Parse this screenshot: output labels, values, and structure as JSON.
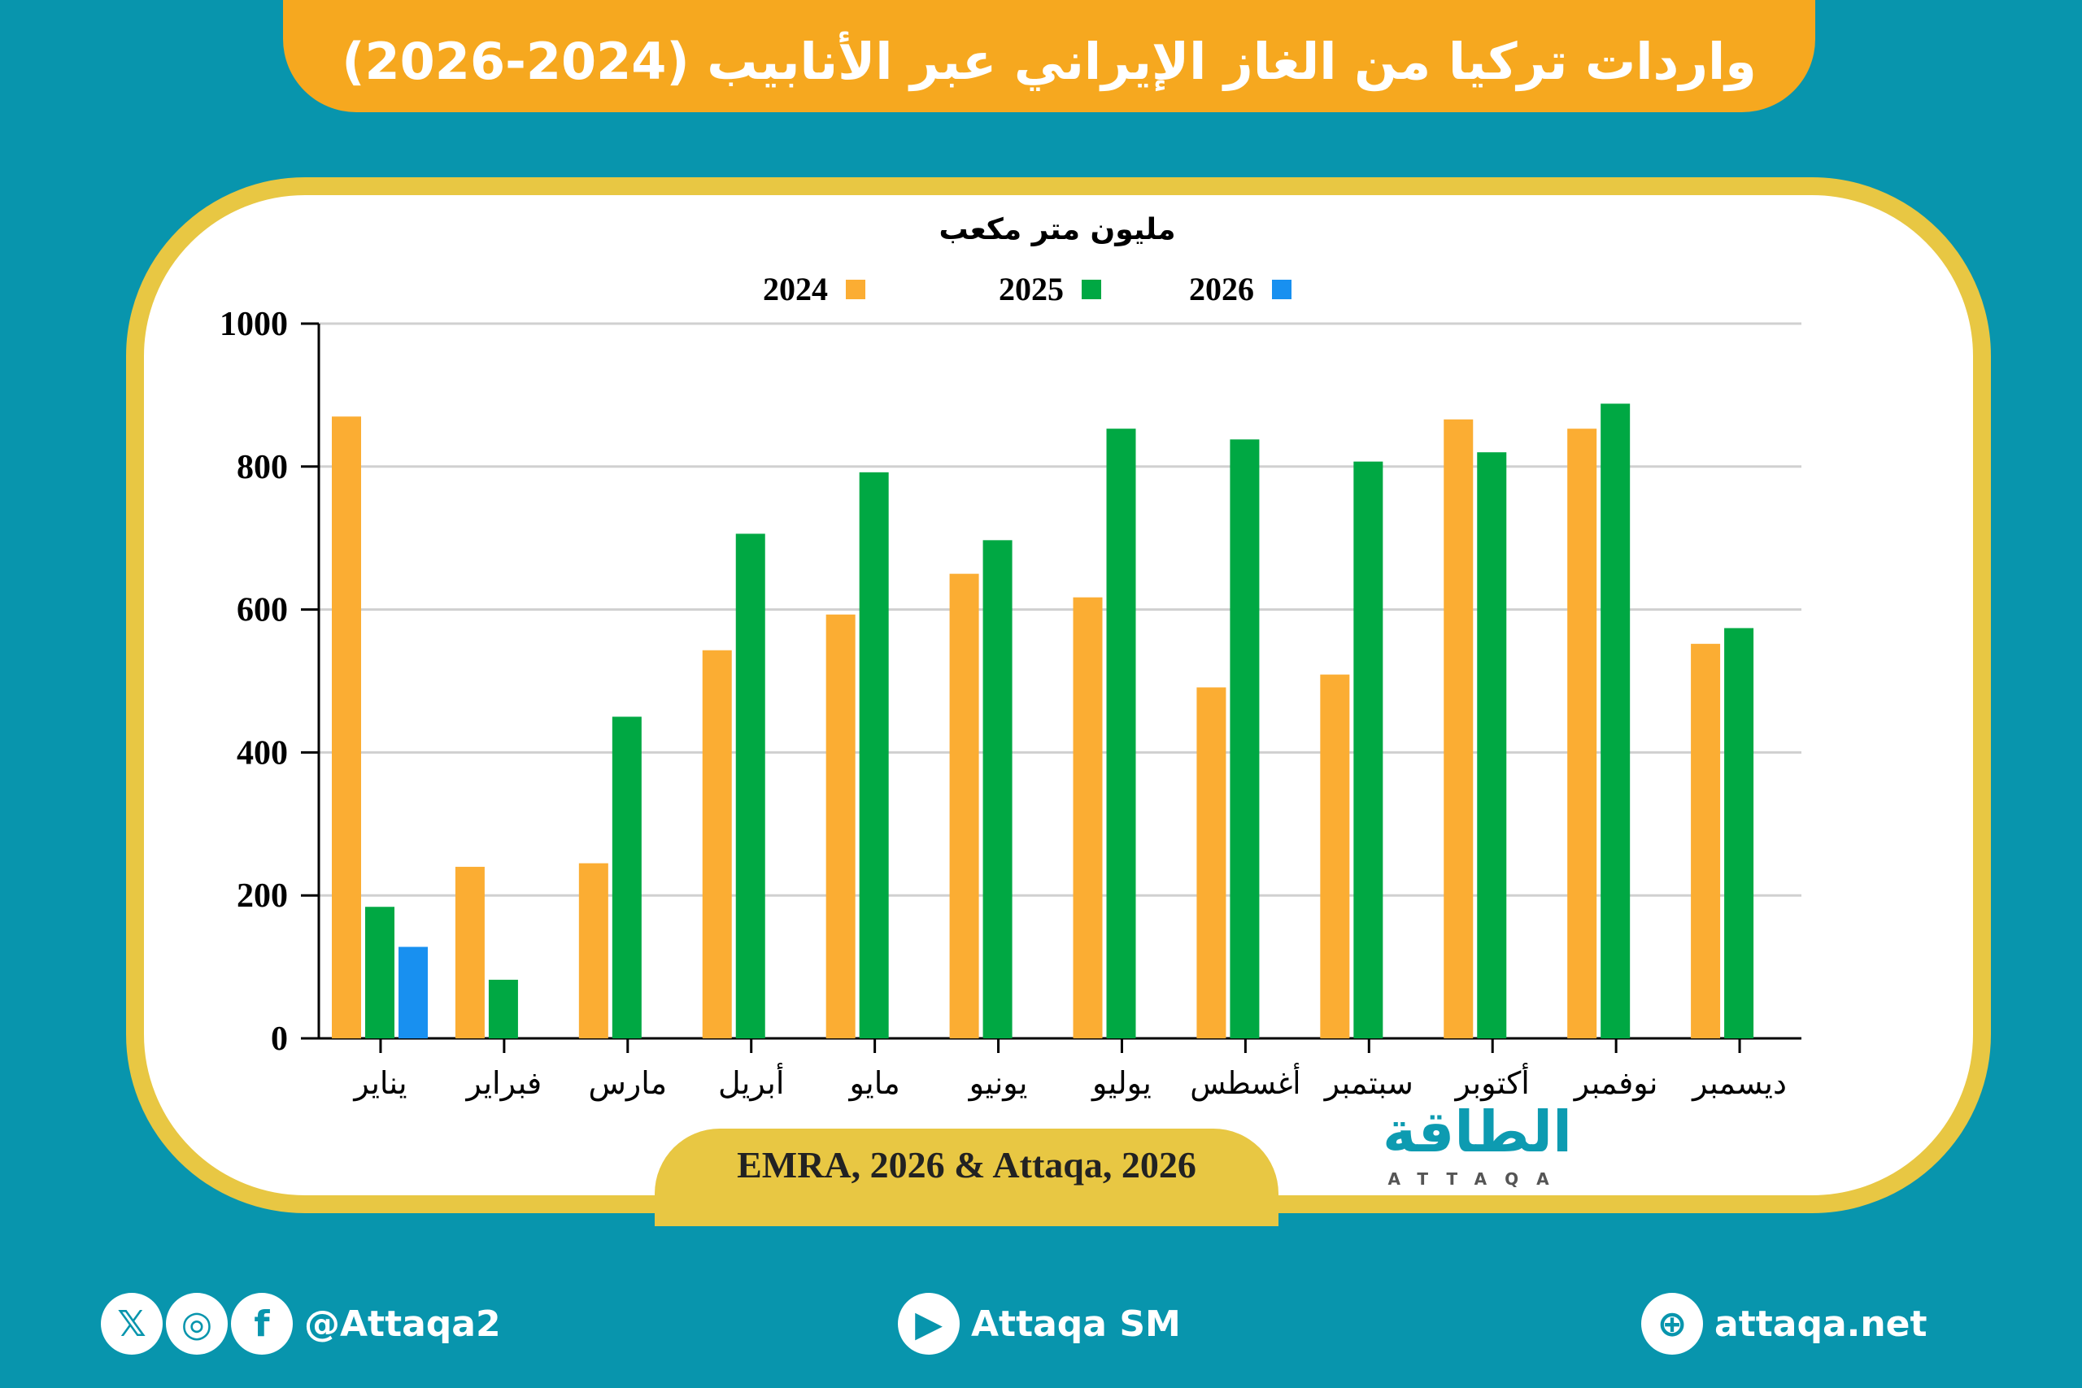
{
  "title": "واردات تركيا من الغاز الإيراني عبر الأنابيب (2024-2026)",
  "colors": {
    "background": "#0895ad",
    "banner": "#f6a81f",
    "frame": "#e8c743",
    "2024": "#fbad33",
    "2025": "#00a843",
    "2026": "#1890f0"
  },
  "chart_data": {
    "type": "bar",
    "unit_label": "مليون متر مكعب",
    "categories": [
      "يناير",
      "فبراير",
      "مارس",
      "أبريل",
      "مايو",
      "يونيو",
      "يوليو",
      "أغسطس",
      "سبتمبر",
      "أكتوبر",
      "نوفمبر",
      "ديسمبر"
    ],
    "series": [
      {
        "name": "2024",
        "values": [
          870,
          240,
          245,
          543,
          593,
          650,
          617,
          491,
          509,
          866,
          853,
          552
        ]
      },
      {
        "name": "2025",
        "values": [
          184,
          82,
          450,
          706,
          792,
          697,
          853,
          838,
          807,
          820,
          888,
          574
        ]
      },
      {
        "name": "2026",
        "values": [
          128,
          null,
          null,
          null,
          null,
          null,
          null,
          null,
          null,
          null,
          null,
          null
        ]
      }
    ],
    "ylim": [
      0,
      1000
    ],
    "yticks": [
      0,
      200,
      400,
      600,
      800,
      1000
    ],
    "grid": true,
    "legend": "top"
  },
  "source": "EMRA, 2026 & Attaqa, 2026",
  "logo": {
    "arabic": "الطاقة",
    "latin": "ATTAQA"
  },
  "footer": {
    "social_handle": "@Attaqa2",
    "youtube": "Attaqa SM",
    "website": "attaqa.net"
  }
}
